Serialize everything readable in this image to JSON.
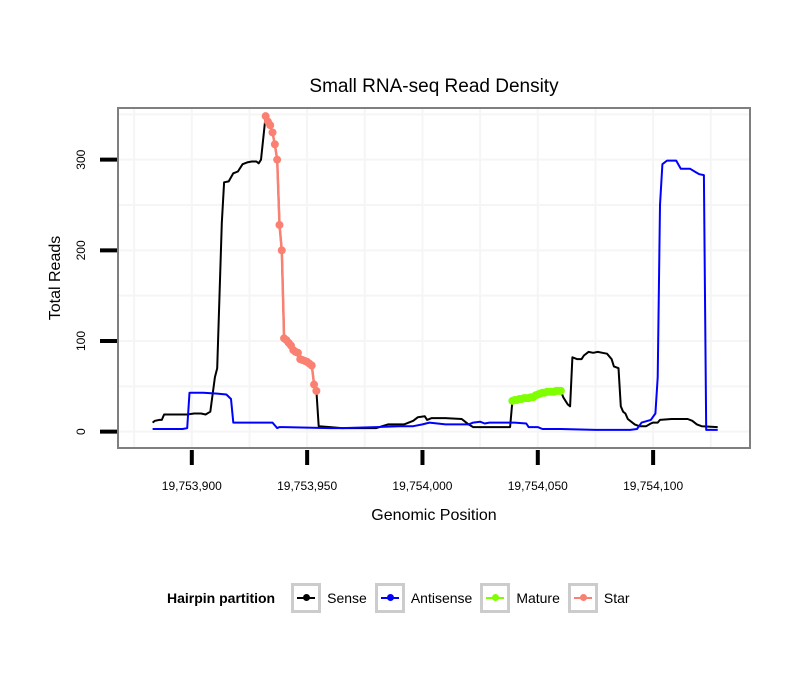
{
  "chart_data": {
    "type": "line",
    "title": "Small RNA-seq Read Density",
    "xlabel": "Genomic Position",
    "ylabel": "Total Reads",
    "xlim": [
      19753868,
      19754142
    ],
    "ylim": [
      -18,
      357
    ],
    "grid": true,
    "x_ticks": [
      19753900,
      19753950,
      19754000,
      19754050,
      19754100
    ],
    "x_tick_labels": [
      "19,753,900",
      "19,753,950",
      "19,754,000",
      "19,754,050",
      "19,754,100"
    ],
    "y_ticks": [
      0,
      100,
      200,
      300
    ],
    "y_tick_labels": [
      "0",
      "100",
      "200",
      "300"
    ],
    "legend": {
      "title": "Hairpin partition",
      "placement": "bottom",
      "entries": [
        {
          "name": "Sense",
          "color": "#000000"
        },
        {
          "name": "Antisense",
          "color": "#0000ff"
        },
        {
          "name": "Mature",
          "color": "#7fff00"
        },
        {
          "name": "Star",
          "color": "#fa8072"
        }
      ]
    },
    "series": [
      {
        "name": "Sense",
        "color": "#000000",
        "markers": false,
        "points": [
          [
            19753883,
            10
          ],
          [
            19753884,
            12
          ],
          [
            19753886,
            13
          ],
          [
            19753887,
            13
          ],
          [
            19753888,
            19
          ],
          [
            19753893,
            19
          ],
          [
            19753898,
            19
          ],
          [
            19753901,
            20
          ],
          [
            19753904,
            20
          ],
          [
            19753906,
            19
          ],
          [
            19753908,
            22
          ],
          [
            19753910,
            60
          ],
          [
            19753911,
            70
          ],
          [
            19753913,
            230
          ],
          [
            19753914,
            275
          ],
          [
            19753916,
            276
          ],
          [
            19753918,
            285
          ],
          [
            19753920,
            287
          ],
          [
            19753922,
            295
          ],
          [
            19753924,
            297
          ],
          [
            19753926,
            298
          ],
          [
            19753928,
            298
          ],
          [
            19753929,
            296
          ],
          [
            19753930,
            300
          ],
          [
            19753932,
            348
          ],
          [
            19753933,
            342
          ],
          [
            19753934,
            338
          ],
          [
            19753935,
            330
          ],
          [
            19753936,
            317
          ],
          [
            19753937,
            300
          ],
          [
            19753938,
            228
          ],
          [
            19753939,
            200
          ],
          [
            19753940,
            103
          ],
          [
            19753941,
            101
          ],
          [
            19753942,
            98
          ],
          [
            19753943,
            95
          ],
          [
            19753944,
            90
          ],
          [
            19753945,
            88
          ],
          [
            19753946,
            87
          ],
          [
            19753947,
            80
          ],
          [
            19753948,
            79
          ],
          [
            19753949,
            78
          ],
          [
            19753950,
            77
          ],
          [
            19753951,
            75
          ],
          [
            19753952,
            73
          ],
          [
            19753953,
            52
          ],
          [
            19753954,
            45
          ],
          [
            19753955,
            6
          ],
          [
            19753960,
            5
          ],
          [
            19753965,
            4
          ],
          [
            19753972,
            4
          ],
          [
            19753980,
            4
          ],
          [
            19753985,
            8
          ],
          [
            19753992,
            8
          ],
          [
            19753996,
            12
          ],
          [
            19753998,
            16
          ],
          [
            19754001,
            17
          ],
          [
            19754002,
            13
          ],
          [
            19754004,
            15
          ],
          [
            19754010,
            15
          ],
          [
            19754017,
            14
          ],
          [
            19754020,
            8
          ],
          [
            19754022,
            5
          ],
          [
            19754030,
            5
          ],
          [
            19754038,
            5
          ],
          [
            19754039,
            34
          ],
          [
            19754040,
            35
          ],
          [
            19754042,
            36
          ],
          [
            19754044,
            37
          ],
          [
            19754046,
            37
          ],
          [
            19754048,
            38
          ],
          [
            19754049,
            40
          ],
          [
            19754050,
            41
          ],
          [
            19754052,
            43
          ],
          [
            19754054,
            44
          ],
          [
            19754056,
            44
          ],
          [
            19754058,
            45
          ],
          [
            19754060,
            45
          ],
          [
            19754061,
            38
          ],
          [
            19754063,
            30
          ],
          [
            19754064,
            28
          ],
          [
            19754065,
            82
          ],
          [
            19754067,
            80
          ],
          [
            19754069,
            80
          ],
          [
            19754070,
            84
          ],
          [
            19754072,
            88
          ],
          [
            19754074,
            87
          ],
          [
            19754076,
            88
          ],
          [
            19754078,
            87
          ],
          [
            19754080,
            86
          ],
          [
            19754082,
            80
          ],
          [
            19754083,
            72
          ],
          [
            19754085,
            70
          ],
          [
            19754086,
            28
          ],
          [
            19754087,
            22
          ],
          [
            19754088,
            20
          ],
          [
            19754089,
            14
          ],
          [
            19754092,
            8
          ],
          [
            19754094,
            6
          ],
          [
            19754097,
            6
          ],
          [
            19754099,
            9
          ],
          [
            19754100,
            10
          ],
          [
            19754102,
            10
          ],
          [
            19754103,
            13
          ],
          [
            19754108,
            14
          ],
          [
            19754115,
            14
          ],
          [
            19754117,
            12
          ],
          [
            19754119,
            8
          ],
          [
            19754121,
            6
          ],
          [
            19754128,
            5
          ]
        ]
      },
      {
        "name": "Antisense",
        "color": "#0000ff",
        "markers": false,
        "points": [
          [
            19753883,
            3
          ],
          [
            19753896,
            3
          ],
          [
            19753898,
            4
          ],
          [
            19753899,
            43
          ],
          [
            19753905,
            43
          ],
          [
            19753911,
            42
          ],
          [
            19753915,
            41
          ],
          [
            19753917,
            36
          ],
          [
            19753918,
            10
          ],
          [
            19753930,
            10
          ],
          [
            19753935,
            10
          ],
          [
            19753937,
            4
          ],
          [
            19753938,
            5
          ],
          [
            19753940,
            5
          ],
          [
            19753960,
            4
          ],
          [
            19753965,
            4
          ],
          [
            19753980,
            5
          ],
          [
            19753990,
            6
          ],
          [
            19753996,
            6
          ],
          [
            19754000,
            8
          ],
          [
            19754003,
            10
          ],
          [
            19754010,
            8
          ],
          [
            19754020,
            8
          ],
          [
            19754022,
            10
          ],
          [
            19754025,
            11
          ],
          [
            19754027,
            9
          ],
          [
            19754029,
            10
          ],
          [
            19754031,
            10
          ],
          [
            19754040,
            10
          ],
          [
            19754045,
            9
          ],
          [
            19754046,
            5
          ],
          [
            19754050,
            5
          ],
          [
            19754052,
            3
          ],
          [
            19754060,
            3
          ],
          [
            19754075,
            2
          ],
          [
            19754090,
            2
          ],
          [
            19754093,
            3
          ],
          [
            19754095,
            10
          ],
          [
            19754099,
            13
          ],
          [
            19754101,
            20
          ],
          [
            19754102,
            60
          ],
          [
            19754103,
            250
          ],
          [
            19754104,
            295
          ],
          [
            19754106,
            299
          ],
          [
            19754110,
            299
          ],
          [
            19754112,
            290
          ],
          [
            19754116,
            290
          ],
          [
            19754118,
            287
          ],
          [
            19754120,
            284
          ],
          [
            19754122,
            283
          ],
          [
            19754123,
            2
          ],
          [
            19754128,
            2
          ]
        ]
      },
      {
        "name": "Mature",
        "color": "#7fff00",
        "markers": true,
        "points": [
          [
            19754039,
            34
          ],
          [
            19754040,
            35
          ],
          [
            19754041,
            35
          ],
          [
            19754042,
            36
          ],
          [
            19754043,
            36
          ],
          [
            19754044,
            37
          ],
          [
            19754045,
            37
          ],
          [
            19754046,
            37
          ],
          [
            19754047,
            38
          ],
          [
            19754048,
            38
          ],
          [
            19754049,
            40
          ],
          [
            19754050,
            41
          ],
          [
            19754051,
            42
          ],
          [
            19754052,
            43
          ],
          [
            19754053,
            43
          ],
          [
            19754054,
            44
          ],
          [
            19754055,
            44
          ],
          [
            19754056,
            44
          ],
          [
            19754057,
            44
          ],
          [
            19754058,
            45
          ],
          [
            19754059,
            45
          ],
          [
            19754060,
            45
          ]
        ]
      },
      {
        "name": "Star",
        "color": "#fa8072",
        "markers": true,
        "points": [
          [
            19753932,
            348
          ],
          [
            19753933,
            342
          ],
          [
            19753934,
            338
          ],
          [
            19753935,
            330
          ],
          [
            19753936,
            317
          ],
          [
            19753937,
            300
          ],
          [
            19753938,
            228
          ],
          [
            19753939,
            200
          ],
          [
            19753940,
            103
          ],
          [
            19753941,
            101
          ],
          [
            19753942,
            98
          ],
          [
            19753943,
            95
          ],
          [
            19753944,
            90
          ],
          [
            19753945,
            88
          ],
          [
            19753946,
            87
          ],
          [
            19753947,
            80
          ],
          [
            19753948,
            79
          ],
          [
            19753949,
            78
          ],
          [
            19753950,
            77
          ],
          [
            19753951,
            75
          ],
          [
            19753952,
            73
          ],
          [
            19753953,
            52
          ],
          [
            19753954,
            45
          ]
        ]
      }
    ]
  }
}
